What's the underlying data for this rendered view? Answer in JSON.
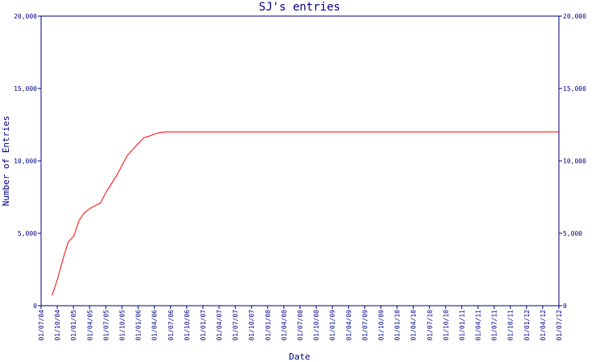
{
  "chart_data": {
    "type": "line",
    "title": "SJ's entries",
    "xlabel": "Date",
    "ylabel": "Number of Entries",
    "ylim": [
      0,
      20000
    ],
    "y_ticks": [
      0,
      5000,
      10000,
      15000,
      20000
    ],
    "y_tick_labels": [
      "0",
      "5,000",
      "10,000",
      "15,000",
      "20,000"
    ],
    "x_tick_labels": [
      "01/07/04",
      "01/10/04",
      "01/01/05",
      "01/04/05",
      "01/07/05",
      "01/10/05",
      "01/01/06",
      "01/04/06",
      "01/07/06",
      "01/10/06",
      "01/01/07",
      "01/04/07",
      "01/07/07",
      "01/10/07",
      "01/01/08",
      "01/04/08",
      "01/07/08",
      "01/10/08",
      "01/01/09",
      "01/04/09",
      "01/07/09",
      "01/10/09",
      "01/01/10",
      "01/04/10",
      "01/07/10",
      "01/10/10",
      "01/01/11",
      "01/04/11",
      "01/07/11",
      "01/10/11",
      "01/01/12",
      "01/04/12",
      "01/07/12"
    ],
    "x_range": [
      "2004-07-01",
      "2012-07-01"
    ],
    "colors": {
      "line": "#ff0000",
      "axes": "#000080",
      "text": "#000080"
    },
    "series": [
      {
        "x": [
          "2004-09-01",
          "2004-10-01",
          "2004-11-01",
          "2004-12-01",
          "2005-01-01",
          "2005-02-01",
          "2005-03-01",
          "2005-04-01",
          "2005-05-01",
          "2005-06-01",
          "2005-07-01",
          "2005-08-01",
          "2005-09-01",
          "2005-10-01",
          "2005-11-01",
          "2005-12-01",
          "2006-01-01",
          "2006-02-01",
          "2006-03-01",
          "2006-04-01",
          "2006-05-01",
          "2006-06-01",
          "2006-07-01",
          "2012-07-01"
        ],
        "y": [
          700,
          1800,
          3200,
          4400,
          4800,
          5900,
          6400,
          6700,
          6900,
          7100,
          7800,
          8400,
          9000,
          9700,
          10400,
          10800,
          11200,
          11600,
          11700,
          11850,
          11950,
          12000,
          12000,
          12000
        ]
      }
    ]
  }
}
